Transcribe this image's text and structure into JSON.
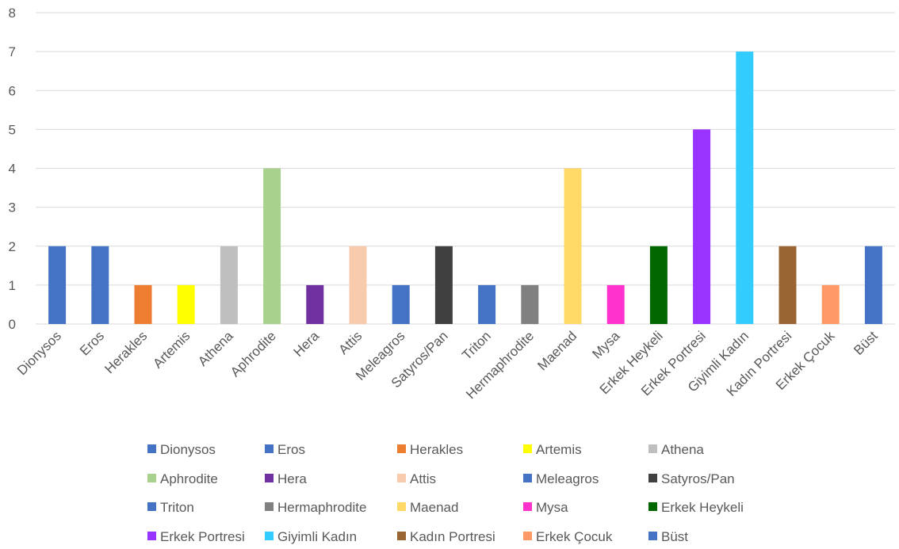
{
  "chart_data": {
    "type": "bar",
    "title": "",
    "xlabel": "",
    "ylabel": "",
    "ylim": [
      0,
      8
    ],
    "yticks": [
      0,
      1,
      2,
      3,
      4,
      5,
      6,
      7,
      8
    ],
    "grid": true,
    "legend_position": "bottom",
    "categories": [
      "Dionysos",
      "Eros",
      "Herakles",
      "Artemis",
      "Athena",
      "Aphrodite",
      "Hera",
      "Attis",
      "Meleagros",
      "Satyros/Pan",
      "Triton",
      "Hermaphrodite",
      "Maenad",
      "Mysa",
      "Erkek Heykeli",
      "Erkek Portresi",
      "Giyimli Kadın",
      "Kadın Portresi",
      "Erkek Çocuk",
      "Büst"
    ],
    "values": [
      2,
      2,
      1,
      1,
      2,
      4,
      1,
      2,
      1,
      2,
      1,
      1,
      4,
      1,
      2,
      5,
      7,
      2,
      1,
      2
    ],
    "colors": [
      "#4472C4",
      "#4472C4",
      "#ED7D31",
      "#FFFF00",
      "#BFBFBF",
      "#A9D18E",
      "#7030A0",
      "#F8CBAD",
      "#4472C4",
      "#404040",
      "#4472C4",
      "#808080",
      "#FFD966",
      "#FF33CC",
      "#006600",
      "#9933FF",
      "#33CCFF",
      "#996633",
      "#FF9966",
      "#4472C4"
    ],
    "gridline_color": "#D9D9D9",
    "text_color": "#595959"
  }
}
